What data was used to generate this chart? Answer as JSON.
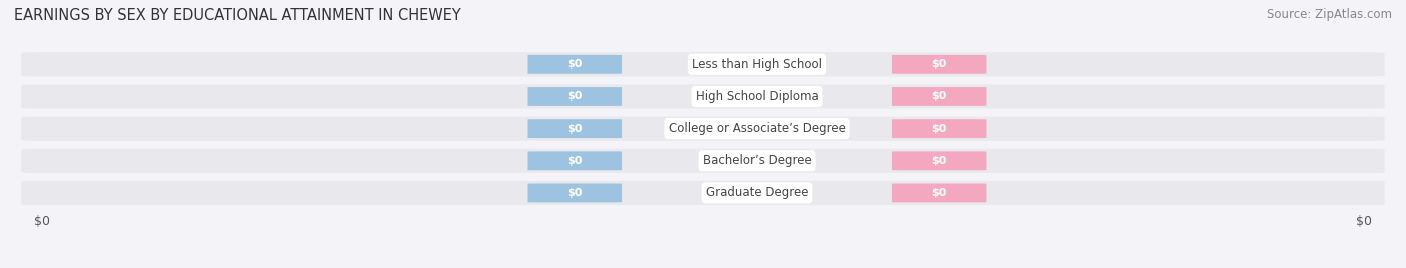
{
  "title": "EARNINGS BY SEX BY EDUCATIONAL ATTAINMENT IN CHEWEY",
  "source": "Source: ZipAtlas.com",
  "categories": [
    "Less than High School",
    "High School Diploma",
    "College or Associate’s Degree",
    "Bachelor’s Degree",
    "Graduate Degree"
  ],
  "male_values": [
    0,
    0,
    0,
    0,
    0
  ],
  "female_values": [
    0,
    0,
    0,
    0,
    0
  ],
  "male_color": "#9dc3e0",
  "female_color": "#f4a8c0",
  "row_bg_color": "#e8e8ed",
  "row_bg_color_alt": "#f0f0f4",
  "bar_label_color": "#ffffff",
  "cat_label_bg": "#ffffff",
  "cat_label_color": "#444444",
  "xlabel_left": "$0",
  "xlabel_right": "$0",
  "title_fontsize": 10.5,
  "source_fontsize": 8.5,
  "bar_label_fontsize": 8,
  "cat_label_fontsize": 8.5,
  "tick_fontsize": 9,
  "legend_fontsize": 9,
  "background_color": "#f4f4f8"
}
